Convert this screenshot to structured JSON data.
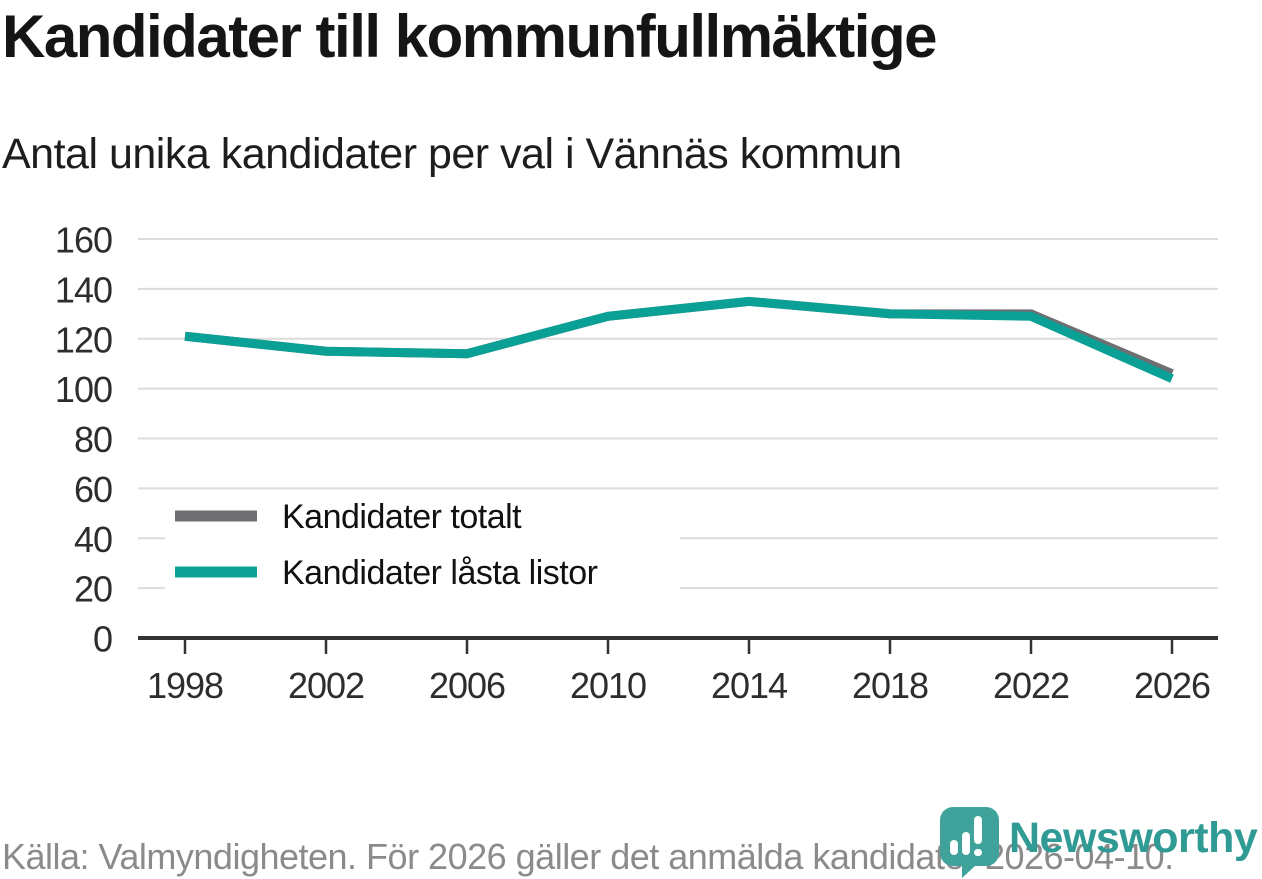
{
  "header": {
    "title": "Kandidater till kommunfullmäktige",
    "subtitle": "Antal unika kandidater per val i Vännäs kommun"
  },
  "footer": {
    "source": "Källa: Valmyndigheten. För 2026 gäller det anmälda kandidater 2026-04-10."
  },
  "logo": {
    "text": "Newsworthy",
    "icon": "newsworthy-speech-bubble-chart-icon",
    "icon_color": "#3fa39b",
    "text_color": "#2f9b94"
  },
  "colors": {
    "teal_series": "#0aa096",
    "gray_series": "#6f6f73",
    "gridline": "#dcdcdc",
    "axis": "#333333",
    "tick_label": "#2d2d2d",
    "legend_label": "#111111",
    "footer_text": "#8b8b8b"
  },
  "chart_data": {
    "type": "line",
    "title": "Kandidater till kommunfullmäktige",
    "subtitle": "Antal unika kandidater per val i Vännäs kommun",
    "x": [
      1998,
      2002,
      2006,
      2010,
      2014,
      2018,
      2022,
      2026
    ],
    "x_tick_labels": [
      "1998",
      "2002",
      "2006",
      "2010",
      "2014",
      "2018",
      "2022",
      "2026"
    ],
    "series": [
      {
        "name": "Kandidater totalt",
        "color": "#6f6f73",
        "values": [
          121,
          115,
          114,
          129,
          135,
          130,
          130,
          106
        ]
      },
      {
        "name": "Kandidater låsta listor",
        "color": "#0aa096",
        "values": [
          121,
          115,
          114,
          129,
          135,
          130,
          129,
          104
        ]
      }
    ],
    "ylim": [
      0,
      160
    ],
    "yticks": [
      0,
      20,
      40,
      60,
      80,
      100,
      120,
      140,
      160
    ],
    "grid": "horizontal",
    "legend_position": "inside-left-middle"
  }
}
